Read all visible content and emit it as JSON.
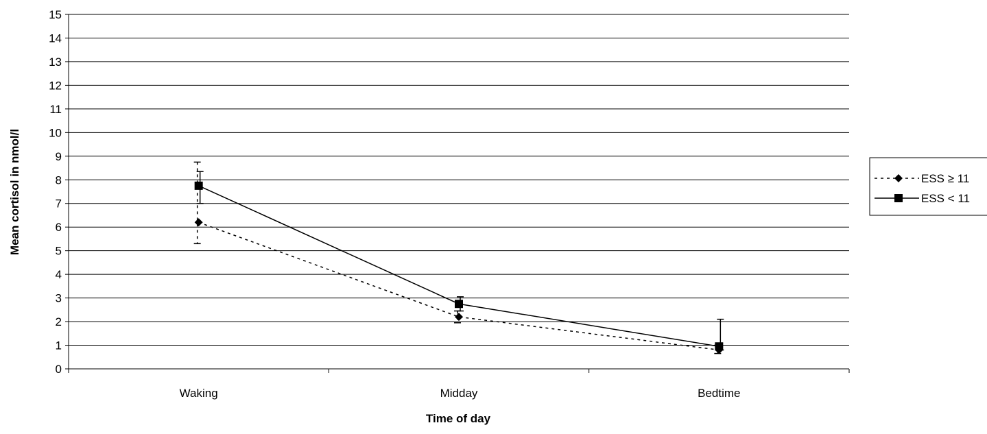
{
  "chart_data": {
    "type": "line",
    "title": "",
    "xlabel": "Time of day",
    "ylabel": "Mean cortisol in nmol/l",
    "categories": [
      "Waking",
      "Midday",
      "Bedtime"
    ],
    "ylim": [
      0,
      15
    ],
    "yticks": [
      0,
      1,
      2,
      3,
      4,
      5,
      6,
      7,
      8,
      9,
      10,
      11,
      12,
      13,
      14,
      15
    ],
    "grid": "horizontal",
    "legend_position": "right",
    "series": [
      {
        "name": "ESS ≥ 11",
        "line_style": "dotted",
        "marker": "diamond",
        "values": [
          6.2,
          2.2,
          0.8
        ],
        "error_upper": [
          8.75,
          2.45,
          1.0
        ],
        "error_lower": [
          5.3,
          1.95,
          0.65
        ]
      },
      {
        "name": "ESS < 11",
        "line_style": "solid",
        "marker": "square",
        "values": [
          7.75,
          2.75,
          0.95
        ],
        "error_upper": [
          8.35,
          3.05,
          2.1
        ],
        "error_lower": [
          7.0,
          2.45,
          0.8
        ]
      }
    ],
    "colors": {
      "line": "#000000",
      "grid": "#000000",
      "background": "#ffffff"
    }
  }
}
